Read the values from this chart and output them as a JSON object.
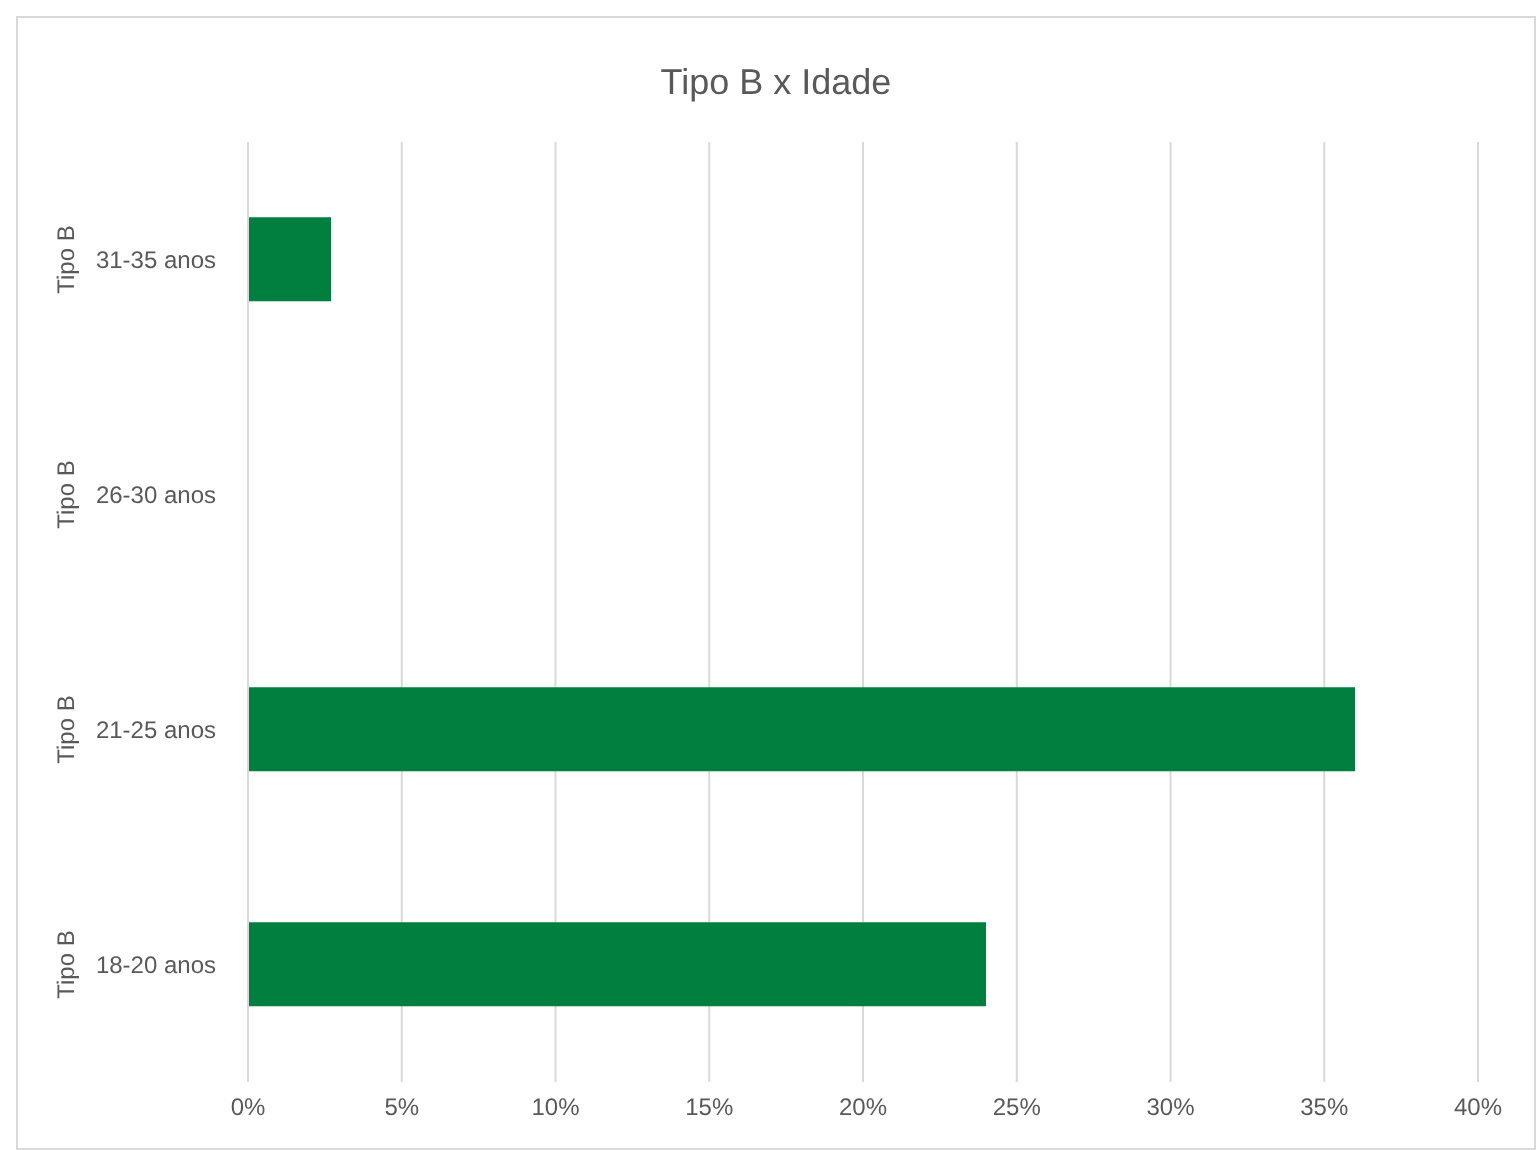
{
  "chart_data": {
    "type": "bar",
    "orientation": "horizontal",
    "title": "Tipo B x Idade",
    "categories": [
      "31-35 anos",
      "26-30 anos",
      "21-25 anos",
      "18-20 anos"
    ],
    "values": [
      2.7,
      0,
      36,
      24
    ],
    "color": "#007f3f",
    "xlim": [
      0,
      40
    ],
    "xticks": [
      {
        "value": 0,
        "label": "0%"
      },
      {
        "value": 5,
        "label": "5%"
      },
      {
        "value": 10,
        "label": "10%"
      },
      {
        "value": 15,
        "label": "15%"
      },
      {
        "value": 20,
        "label": "20%"
      },
      {
        "value": 25,
        "label": "25%"
      },
      {
        "value": 30,
        "label": "30%"
      },
      {
        "value": 35,
        "label": "35%"
      },
      {
        "value": 40,
        "label": "40%"
      }
    ],
    "annotations": [
      "Tipo B",
      "Tipo B",
      "Tipo B",
      "Tipo B"
    ],
    "grid": "x"
  }
}
